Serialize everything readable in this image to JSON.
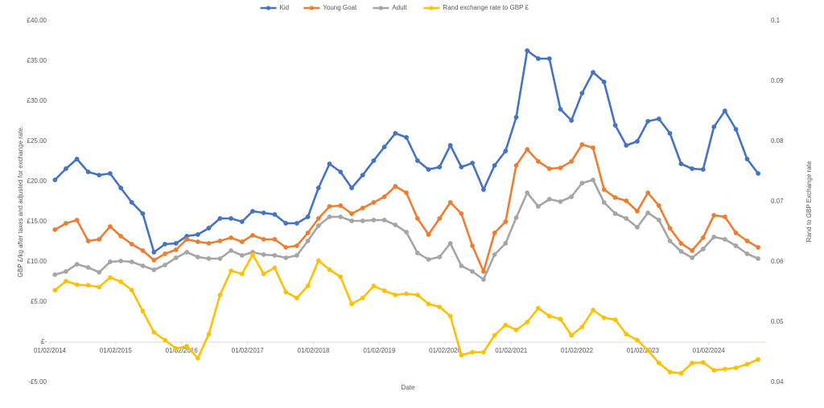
{
  "chart_data": {
    "type": "line",
    "x_label": "Date",
    "y_label": "GBP £/kg after taxes and adjusted for exchange rate.",
    "y2_label": "Rand to GBP Exchange rate",
    "legend": "top",
    "grid": false,
    "x": [
      "2014-03-01",
      "2014-05-01",
      "2014-07-01",
      "2014-09-01",
      "2014-11-01",
      "2015-01-01",
      "2015-03-01",
      "2015-05-01",
      "2015-07-01",
      "2015-09-01",
      "2015-11-01",
      "2016-01-01",
      "2016-03-01",
      "2016-05-01",
      "2016-07-01",
      "2016-09-01",
      "2016-11-01",
      "2017-01-01",
      "2017-03-01",
      "2017-05-01",
      "2017-07-01",
      "2017-09-01",
      "2017-11-01",
      "2018-01-01",
      "2018-03-01",
      "2018-05-01",
      "2018-07-01",
      "2018-09-01",
      "2018-11-01",
      "2019-01-01",
      "2019-03-01",
      "2019-05-01",
      "2019-07-01",
      "2019-09-01",
      "2019-11-01",
      "2020-01-01",
      "2020-03-01",
      "2020-05-01",
      "2020-07-01",
      "2020-09-01",
      "2020-11-01",
      "2021-01-01",
      "2021-03-01",
      "2021-05-01",
      "2021-07-01",
      "2021-09-01",
      "2021-11-01",
      "2022-01-01",
      "2022-03-01",
      "2022-05-01",
      "2022-07-01",
      "2022-09-01",
      "2022-11-01",
      "2023-01-01",
      "2023-03-01",
      "2023-05-01",
      "2023-07-01",
      "2023-09-01",
      "2023-11-01",
      "2024-01-01",
      "2024-03-01",
      "2024-05-01",
      "2024-07-01",
      "2024-09-01",
      "2024-11-01"
    ],
    "xlim": [
      "2014-02-01",
      "2024-12-15"
    ],
    "xticks": [
      {
        "value": "2014-02-01",
        "label": "01/02/2014"
      },
      {
        "value": "2015-02-01",
        "label": "01/02/2015"
      },
      {
        "value": "2016-02-01",
        "label": "01/02/2016"
      },
      {
        "value": "2017-02-01",
        "label": "01/02/2017"
      },
      {
        "value": "2018-02-01",
        "label": "01/02/2018"
      },
      {
        "value": "2019-02-01",
        "label": "01/02/2019"
      },
      {
        "value": "2020-02-01",
        "label": "01/02/2020"
      },
      {
        "value": "2021-02-01",
        "label": "01/02/2021"
      },
      {
        "value": "2022-02-01",
        "label": "01/02/2022"
      },
      {
        "value": "2023-02-01",
        "label": "01/02/2023"
      },
      {
        "value": "2024-02-01",
        "label": "01/02/2024"
      }
    ],
    "ylim": [
      -5,
      40
    ],
    "yticks": [
      {
        "value": -5,
        "label": "-£5.00"
      },
      {
        "value": 0,
        "label": "£-"
      },
      {
        "value": 5,
        "label": "£5.00"
      },
      {
        "value": 10,
        "label": "£10.00"
      },
      {
        "value": 15,
        "label": "£15.00"
      },
      {
        "value": 20,
        "label": "£20.00"
      },
      {
        "value": 25,
        "label": "£25.00"
      },
      {
        "value": 30,
        "label": "£30.00"
      },
      {
        "value": 35,
        "label": "£35.00"
      },
      {
        "value": 40,
        "label": "£40.00"
      }
    ],
    "y2lim": [
      0.04,
      0.1
    ],
    "y2ticks": [
      0.04,
      0.05,
      0.06,
      0.07,
      0.08,
      0.09,
      0.1
    ],
    "series": [
      {
        "name": "Kid",
        "color": "#4472c4",
        "values": [
          20.2,
          21.6,
          22.8,
          21.2,
          20.8,
          21.0,
          19.2,
          17.4,
          16.0,
          11.2,
          12.2,
          12.3,
          13.2,
          13.4,
          14.2,
          15.4,
          15.4,
          15.0,
          16.3,
          16.1,
          15.9,
          14.8,
          14.8,
          15.6,
          19.2,
          22.2,
          21.2,
          19.2,
          20.8,
          22.6,
          24.3,
          26.0,
          25.5,
          22.6,
          21.5,
          21.8,
          24.5,
          21.8,
          22.3,
          19.0,
          22.0,
          23.8,
          28.0,
          36.3,
          35.3,
          35.3,
          29.0,
          27.6,
          31.0,
          33.6,
          32.4,
          27.0,
          24.5,
          25.0,
          27.5,
          27.8,
          26.0,
          22.2,
          21.6,
          21.5,
          26.8,
          28.8,
          26.5,
          22.8,
          21.0
        ]
      },
      {
        "name": "Young Goat",
        "color": "#ed7d31",
        "values": [
          14.0,
          14.8,
          15.2,
          12.6,
          12.8,
          14.4,
          13.2,
          12.2,
          11.4,
          10.2,
          11.0,
          11.5,
          12.8,
          12.5,
          12.3,
          12.6,
          13.0,
          12.5,
          13.3,
          12.8,
          12.8,
          11.8,
          12.0,
          13.6,
          15.4,
          16.9,
          17.0,
          16.0,
          16.7,
          17.4,
          18.1,
          19.4,
          18.6,
          15.4,
          13.4,
          15.4,
          17.4,
          16.0,
          12.0,
          8.8,
          13.6,
          15.0,
          22.0,
          24.0,
          22.5,
          21.6,
          21.7,
          22.5,
          24.6,
          24.2,
          19.0,
          18.0,
          17.6,
          16.3,
          18.6,
          17.0,
          14.2,
          12.3,
          11.4,
          13.0,
          15.8,
          15.6,
          13.6,
          12.6,
          11.8
        ]
      },
      {
        "name": "Adult",
        "color": "#a5a5a5",
        "values": [
          8.4,
          8.8,
          9.7,
          9.3,
          8.7,
          10.0,
          10.1,
          10.0,
          9.5,
          9.0,
          9.6,
          10.5,
          11.2,
          10.6,
          10.4,
          10.4,
          11.4,
          10.8,
          11.2,
          10.9,
          10.8,
          10.5,
          10.8,
          12.6,
          14.5,
          15.6,
          15.6,
          15.1,
          15.1,
          15.2,
          15.2,
          14.6,
          13.7,
          11.1,
          10.3,
          10.6,
          12.3,
          9.5,
          8.8,
          7.8,
          10.9,
          12.3,
          15.5,
          18.6,
          16.9,
          17.8,
          17.5,
          18.1,
          19.8,
          20.2,
          17.4,
          16.0,
          15.4,
          14.3,
          16.1,
          15.2,
          12.6,
          11.3,
          10.5,
          11.6,
          13.1,
          12.8,
          12.0,
          11.0,
          10.4
        ]
      },
      {
        "name": "Rand exchange rate to GBP £",
        "color": "#ffc000",
        "axis": "y2",
        "values": [
          0.0553,
          0.0568,
          0.0562,
          0.0561,
          0.0558,
          0.0574,
          0.0567,
          0.0553,
          0.0518,
          0.0483,
          0.047,
          0.0456,
          0.046,
          0.044,
          0.048,
          0.0545,
          0.0585,
          0.058,
          0.0612,
          0.058,
          0.059,
          0.055,
          0.054,
          0.056,
          0.0602,
          0.0587,
          0.0575,
          0.053,
          0.054,
          0.056,
          0.0552,
          0.0545,
          0.0547,
          0.0545,
          0.053,
          0.0525,
          0.051,
          0.0445,
          0.045,
          0.045,
          0.0478,
          0.0495,
          0.0487,
          0.05,
          0.0523,
          0.051,
          0.0505,
          0.0478,
          0.0492,
          0.052,
          0.0507,
          0.0504,
          0.048,
          0.047,
          0.0453,
          0.0432,
          0.0417,
          0.0415,
          0.0432,
          0.0433,
          0.042,
          0.0422,
          0.0424,
          0.043,
          0.0438
        ]
      }
    ]
  }
}
